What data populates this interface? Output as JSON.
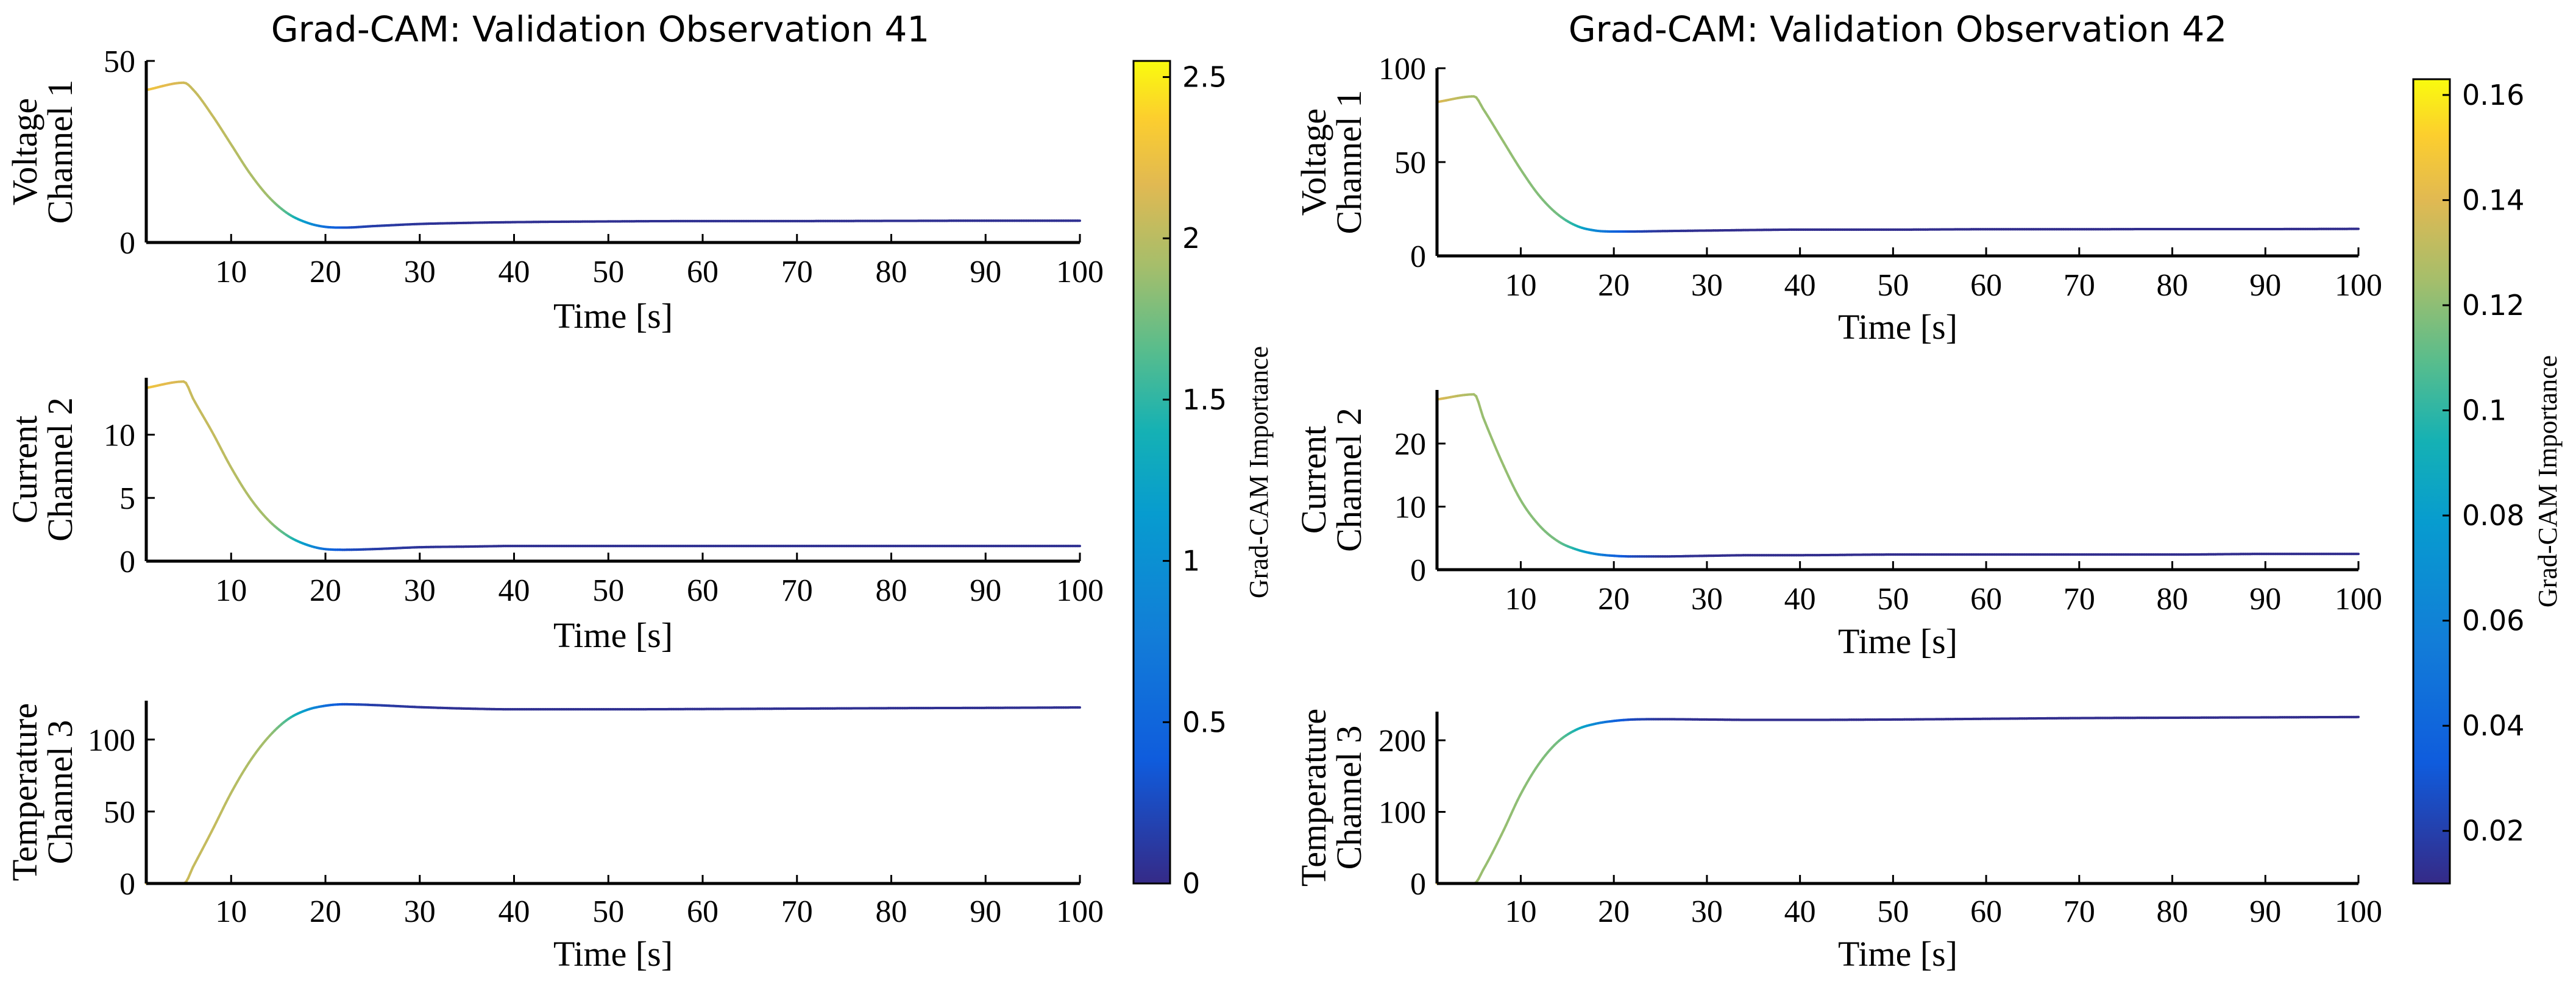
{
  "chart_data": [
    {
      "type": "line",
      "title": "Grad-CAM: Validation Observation 41",
      "colorbar": {
        "label": "Grad-CAM Importance",
        "range": [
          0,
          2.55
        ],
        "ticks": [
          "0",
          "0.5",
          "1",
          "1.5",
          "2",
          "2.5"
        ],
        "tick_values": [
          0,
          0.5,
          1,
          1.5,
          2,
          2.5
        ]
      },
      "subplots": [
        {
          "ylabel": [
            "Voltage",
            "Channel 1"
          ],
          "xlabel": "Time [s]",
          "xlim": [
            1,
            100
          ],
          "ylim": [
            0,
            50
          ],
          "yticks": [
            "0",
            "50"
          ],
          "ytick_values": [
            0,
            50
          ],
          "xticks": [
            "10",
            "20",
            "30",
            "40",
            "50",
            "60",
            "70",
            "80",
            "90",
            "100"
          ],
          "xtick_values": [
            10,
            20,
            30,
            40,
            50,
            60,
            70,
            80,
            90,
            100
          ],
          "x": [
            1,
            5,
            6,
            8,
            10,
            12,
            14,
            16,
            18,
            20,
            22,
            25,
            30,
            35,
            40,
            50,
            60,
            70,
            80,
            90,
            100
          ],
          "y": [
            42,
            44,
            42,
            35,
            27,
            19,
            12.5,
            8,
            5.5,
            4.3,
            4.1,
            4.5,
            5.1,
            5.4,
            5.6,
            5.8,
            5.9,
            5.9,
            5.95,
            6.0,
            6.0
          ],
          "importance": [
            2.3,
            2.1,
            2.05,
            2.05,
            2.0,
            1.95,
            1.9,
            1.6,
            1.1,
            0.6,
            0.3,
            0.15,
            0.08,
            0.05,
            0.05,
            0.05,
            0.05,
            0.05,
            0.05,
            0.05,
            0.05
          ]
        },
        {
          "ylabel": [
            "Current",
            "Channel 2"
          ],
          "xlabel": "Time [s]",
          "xlim": [
            1,
            100
          ],
          "ylim": [
            0,
            14.5
          ],
          "yticks": [
            "0",
            "5",
            "10"
          ],
          "ytick_values": [
            0,
            5,
            10
          ],
          "xticks": [
            "10",
            "20",
            "30",
            "40",
            "50",
            "60",
            "70",
            "80",
            "90",
            "100"
          ],
          "xtick_values": [
            10,
            20,
            30,
            40,
            50,
            60,
            70,
            80,
            90,
            100
          ],
          "x": [
            1,
            5,
            6,
            8,
            10,
            12,
            14,
            16,
            18,
            20,
            22,
            25,
            30,
            35,
            40,
            50,
            60,
            70,
            80,
            90,
            100
          ],
          "y": [
            13.7,
            14.2,
            12.8,
            10.2,
            7.4,
            5.0,
            3.2,
            2.0,
            1.3,
            0.95,
            0.9,
            0.95,
            1.1,
            1.15,
            1.2,
            1.2,
            1.2,
            1.2,
            1.2,
            1.2,
            1.2
          ],
          "importance": [
            2.3,
            2.1,
            2.05,
            2.05,
            2.0,
            1.95,
            1.9,
            1.6,
            1.1,
            0.6,
            0.3,
            0.15,
            0.08,
            0.05,
            0.05,
            0.05,
            0.05,
            0.05,
            0.05,
            0.05,
            0.05
          ]
        },
        {
          "ylabel": [
            "Temperature",
            "Channel 3"
          ],
          "xlabel": "Time [s]",
          "xlim": [
            1,
            100
          ],
          "ylim": [
            0,
            127
          ],
          "yticks": [
            "0",
            "50",
            "100"
          ],
          "ytick_values": [
            0,
            50,
            100
          ],
          "xticks": [
            "10",
            "20",
            "30",
            "40",
            "50",
            "60",
            "70",
            "80",
            "90",
            "100"
          ],
          "xtick_values": [
            10,
            20,
            30,
            40,
            50,
            60,
            70,
            80,
            90,
            100
          ],
          "x": [
            1,
            5,
            6,
            8,
            10,
            12,
            14,
            16,
            18,
            20,
            22,
            25,
            30,
            35,
            40,
            50,
            60,
            70,
            80,
            90,
            100
          ],
          "y": [
            0,
            0,
            12,
            37,
            63,
            85,
            102,
            114,
            120.5,
            123.5,
            124.5,
            124,
            122.5,
            121.5,
            121,
            121,
            121.2,
            121.5,
            121.8,
            122,
            122.3
          ],
          "importance": [
            2.2,
            2.1,
            2.05,
            2.05,
            2.0,
            1.95,
            1.9,
            1.6,
            1.1,
            0.6,
            0.3,
            0.15,
            0.08,
            0.05,
            0.05,
            0.05,
            0.05,
            0.05,
            0.05,
            0.05,
            0.05
          ]
        }
      ]
    },
    {
      "type": "line",
      "title": "Grad-CAM: Validation Observation 42",
      "colorbar": {
        "label": "Grad-CAM Importance",
        "range": [
          0.01,
          0.163
        ],
        "ticks": [
          "0.02",
          "0.04",
          "0.06",
          "0.08",
          "0.1",
          "0.12",
          "0.14",
          "0.16"
        ],
        "tick_values": [
          0.02,
          0.04,
          0.06,
          0.08,
          0.1,
          0.12,
          0.14,
          0.16
        ]
      },
      "subplots": [
        {
          "ylabel": [
            "Voltage",
            "Channel 1"
          ],
          "xlabel": "Time [s]",
          "xlim": [
            1,
            100
          ],
          "ylim": [
            0,
            100
          ],
          "yticks": [
            "0",
            "50",
            "100"
          ],
          "ytick_values": [
            0,
            50,
            100
          ],
          "xticks": [
            "10",
            "20",
            "30",
            "40",
            "50",
            "60",
            "70",
            "80",
            "90",
            "100"
          ],
          "xtick_values": [
            10,
            20,
            30,
            40,
            50,
            60,
            70,
            80,
            90,
            100
          ],
          "x": [
            1,
            5,
            6,
            8,
            10,
            12,
            14,
            16,
            18,
            20,
            22,
            25,
            30,
            35,
            40,
            50,
            60,
            70,
            80,
            90,
            100
          ],
          "y": [
            82,
            85,
            78,
            62,
            46,
            32,
            22,
            16,
            13.5,
            13,
            13,
            13.2,
            13.5,
            13.8,
            14,
            14,
            14.2,
            14.2,
            14.3,
            14.3,
            14.4
          ],
          "importance": [
            0.14,
            0.125,
            0.122,
            0.122,
            0.12,
            0.118,
            0.115,
            0.095,
            0.065,
            0.04,
            0.025,
            0.015,
            0.012,
            0.012,
            0.012,
            0.012,
            0.012,
            0.012,
            0.012,
            0.012,
            0.012
          ]
        },
        {
          "ylabel": [
            "Current",
            "Channel 2"
          ],
          "xlabel": "Time [s]",
          "xlim": [
            1,
            100
          ],
          "ylim": [
            0,
            28.5
          ],
          "yticks": [
            "0",
            "10",
            "20"
          ],
          "ytick_values": [
            0,
            10,
            20
          ],
          "xticks": [
            "10",
            "20",
            "30",
            "40",
            "50",
            "60",
            "70",
            "80",
            "90",
            "100"
          ],
          "xtick_values": [
            10,
            20,
            30,
            40,
            50,
            60,
            70,
            80,
            90,
            100
          ],
          "x": [
            1,
            5,
            6,
            8,
            10,
            12,
            14,
            16,
            18,
            20,
            22,
            25,
            30,
            35,
            40,
            50,
            60,
            70,
            80,
            90,
            100
          ],
          "y": [
            27,
            27.8,
            24,
            17,
            11,
            7,
            4.5,
            3.2,
            2.5,
            2.2,
            2.1,
            2.1,
            2.2,
            2.3,
            2.3,
            2.4,
            2.4,
            2.4,
            2.4,
            2.5,
            2.5
          ],
          "importance": [
            0.14,
            0.125,
            0.122,
            0.122,
            0.12,
            0.118,
            0.115,
            0.095,
            0.065,
            0.04,
            0.025,
            0.015,
            0.012,
            0.012,
            0.012,
            0.012,
            0.012,
            0.012,
            0.012,
            0.012,
            0.012
          ]
        },
        {
          "ylabel": [
            "Temperature",
            "Channel 3"
          ],
          "xlabel": "Time [s]",
          "xlim": [
            1,
            100
          ],
          "ylim": [
            0,
            240
          ],
          "yticks": [
            "0",
            "100",
            "200"
          ],
          "ytick_values": [
            0,
            100,
            200
          ],
          "xticks": [
            "10",
            "20",
            "30",
            "40",
            "50",
            "60",
            "70",
            "80",
            "90",
            "100"
          ],
          "xtick_values": [
            10,
            20,
            30,
            40,
            50,
            60,
            70,
            80,
            90,
            100
          ],
          "x": [
            1,
            5,
            6,
            8,
            10,
            12,
            14,
            16,
            18,
            20,
            22,
            25,
            30,
            35,
            40,
            50,
            60,
            70,
            80,
            90,
            100
          ],
          "y": [
            0,
            0,
            20,
            70,
            125,
            168,
            198,
            215,
            223,
            227,
            229,
            229.5,
            229,
            228.5,
            228.5,
            229,
            230,
            231,
            231.5,
            232,
            232.5
          ],
          "importance": [
            0.14,
            0.125,
            0.122,
            0.122,
            0.12,
            0.118,
            0.115,
            0.095,
            0.065,
            0.04,
            0.025,
            0.015,
            0.012,
            0.012,
            0.012,
            0.012,
            0.012,
            0.012,
            0.012,
            0.012,
            0.012
          ]
        }
      ]
    }
  ]
}
